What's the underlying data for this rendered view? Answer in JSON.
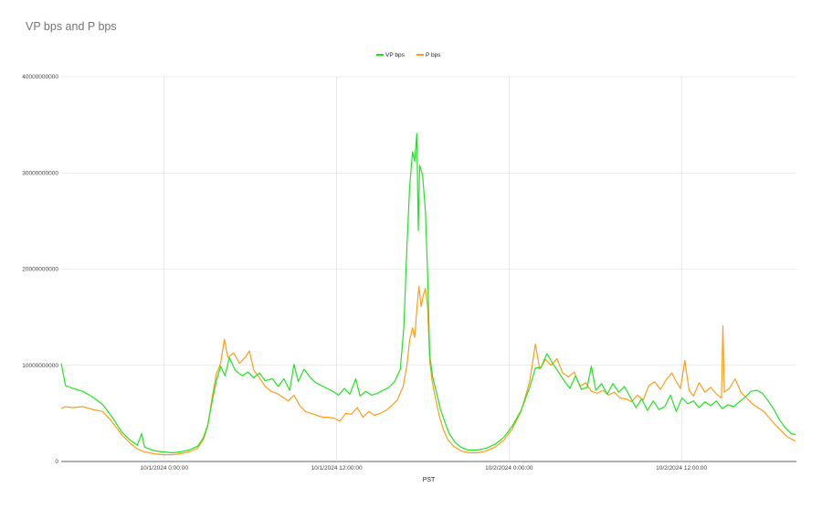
{
  "title": "VP bps and P bps",
  "chart_data": {
    "type": "line",
    "title": "VP bps and P bps",
    "xlabel": "PST",
    "ylabel": "",
    "x_range": [
      "9/30/2024 16:50:00",
      "10/2/2024 22:00:00"
    ],
    "x_tick_labels": [
      "10/1/2024 0:00:00",
      "10/1/2024 12:00:00",
      "10/2/2024 0:00:00",
      "10/2/2024 12:00:00"
    ],
    "x_ticks_hours": [
      7.1667,
      19.1667,
      31.1667,
      43.1667
    ],
    "ylim": [
      0,
      40000000000
    ],
    "y_ticks": [
      0,
      10000000000,
      20000000000,
      30000000000,
      40000000000
    ],
    "y_tick_labels": [
      "0",
      "10000000000",
      "20000000000",
      "30000000000",
      "40000000000"
    ],
    "grid": true,
    "legend": "top-center",
    "series": [
      {
        "name": "VP bps",
        "color": "#1ee61e",
        "points": [
          [
            0,
            10200000000
          ],
          [
            0.3,
            7900000000
          ],
          [
            0.8,
            7600000000
          ],
          [
            1.5,
            7300000000
          ],
          [
            2.2,
            6700000000
          ],
          [
            2.9,
            5900000000
          ],
          [
            3.5,
            4700000000
          ],
          [
            4.2,
            3100000000
          ],
          [
            4.8,
            2200000000
          ],
          [
            5.3,
            1700000000
          ],
          [
            5.6,
            2900000000
          ],
          [
            5.8,
            1500000000
          ],
          [
            6.5,
            1100000000
          ],
          [
            7.1,
            1000000000
          ],
          [
            7.7,
            900000000
          ],
          [
            8.3,
            1000000000
          ],
          [
            8.9,
            1200000000
          ],
          [
            9.5,
            1600000000
          ],
          [
            9.9,
            2500000000
          ],
          [
            10.2,
            3800000000
          ],
          [
            10.5,
            6200000000
          ],
          [
            10.8,
            8400000000
          ],
          [
            11.1,
            9900000000
          ],
          [
            11.4,
            8900000000
          ],
          [
            11.7,
            10800000000
          ],
          [
            12.1,
            9500000000
          ],
          [
            12.6,
            8900000000
          ],
          [
            13.0,
            9300000000
          ],
          [
            13.4,
            8700000000
          ],
          [
            13.8,
            9200000000
          ],
          [
            14.2,
            8400000000
          ],
          [
            14.7,
            8600000000
          ],
          [
            15.1,
            7800000000
          ],
          [
            15.5,
            8600000000
          ],
          [
            15.9,
            7400000000
          ],
          [
            16.2,
            10100000000
          ],
          [
            16.5,
            8300000000
          ],
          [
            16.9,
            9600000000
          ],
          [
            17.3,
            8800000000
          ],
          [
            17.7,
            8200000000
          ],
          [
            18.1,
            7900000000
          ],
          [
            18.5,
            7600000000
          ],
          [
            18.9,
            7300000000
          ],
          [
            19.3,
            6900000000
          ],
          [
            19.7,
            7600000000
          ],
          [
            20.1,
            7000000000
          ],
          [
            20.5,
            8600000000
          ],
          [
            20.8,
            6800000000
          ],
          [
            21.2,
            7300000000
          ],
          [
            21.6,
            6900000000
          ],
          [
            22.0,
            7100000000
          ],
          [
            22.4,
            7400000000
          ],
          [
            22.8,
            7700000000
          ],
          [
            23.2,
            8300000000
          ],
          [
            23.6,
            9600000000
          ],
          [
            23.85,
            14000000000
          ],
          [
            24.05,
            22000000000
          ],
          [
            24.25,
            28500000000
          ],
          [
            24.45,
            32200000000
          ],
          [
            24.6,
            31200000000
          ],
          [
            24.75,
            34100000000
          ],
          [
            24.85,
            24000000000
          ],
          [
            24.95,
            30800000000
          ],
          [
            25.15,
            29800000000
          ],
          [
            25.35,
            26000000000
          ],
          [
            25.5,
            19500000000
          ],
          [
            25.65,
            11000000000
          ],
          [
            25.85,
            8800000000
          ],
          [
            26.1,
            7300000000
          ],
          [
            26.4,
            5400000000
          ],
          [
            26.7,
            4100000000
          ],
          [
            27.0,
            2900000000
          ],
          [
            27.4,
            2000000000
          ],
          [
            27.8,
            1500000000
          ],
          [
            28.3,
            1200000000
          ],
          [
            29.0,
            1200000000
          ],
          [
            29.6,
            1400000000
          ],
          [
            30.2,
            1800000000
          ],
          [
            30.8,
            2500000000
          ],
          [
            31.4,
            3700000000
          ],
          [
            32.0,
            5300000000
          ],
          [
            32.6,
            7700000000
          ],
          [
            33.0,
            9700000000
          ],
          [
            33.4,
            9800000000
          ],
          [
            33.8,
            11200000000
          ],
          [
            34.2,
            10200000000
          ],
          [
            34.6,
            9300000000
          ],
          [
            35.0,
            8400000000
          ],
          [
            35.4,
            7600000000
          ],
          [
            35.8,
            8900000000
          ],
          [
            36.2,
            7500000000
          ],
          [
            36.6,
            7700000000
          ],
          [
            36.9,
            9900000000
          ],
          [
            37.2,
            7400000000
          ],
          [
            37.6,
            8100000000
          ],
          [
            38.0,
            7000000000
          ],
          [
            38.4,
            8100000000
          ],
          [
            38.8,
            7200000000
          ],
          [
            39.2,
            7800000000
          ],
          [
            39.6,
            6700000000
          ],
          [
            40.0,
            5600000000
          ],
          [
            40.4,
            6500000000
          ],
          [
            40.8,
            5300000000
          ],
          [
            41.2,
            6300000000
          ],
          [
            41.6,
            5400000000
          ],
          [
            42.0,
            5700000000
          ],
          [
            42.4,
            6900000000
          ],
          [
            42.8,
            5200000000
          ],
          [
            43.2,
            6600000000
          ],
          [
            43.6,
            6000000000
          ],
          [
            44.0,
            6300000000
          ],
          [
            44.4,
            5600000000
          ],
          [
            44.8,
            6200000000
          ],
          [
            45.2,
            5800000000
          ],
          [
            45.6,
            6300000000
          ],
          [
            46.0,
            5500000000
          ],
          [
            46.4,
            5900000000
          ],
          [
            46.8,
            5700000000
          ],
          [
            47.2,
            6200000000
          ],
          [
            47.6,
            6700000000
          ],
          [
            48.0,
            7300000000
          ],
          [
            48.4,
            7400000000
          ],
          [
            48.8,
            7100000000
          ],
          [
            49.2,
            6300000000
          ],
          [
            49.6,
            5400000000
          ],
          [
            50.0,
            4300000000
          ],
          [
            50.4,
            3500000000
          ],
          [
            50.8,
            2900000000
          ],
          [
            51.1,
            2800000000
          ]
        ]
      },
      {
        "name": "P bps",
        "color": "#ff9c1a",
        "points": [
          [
            0,
            5500000000
          ],
          [
            0.3,
            5700000000
          ],
          [
            0.8,
            5600000000
          ],
          [
            1.5,
            5700000000
          ],
          [
            2.2,
            5400000000
          ],
          [
            2.9,
            5200000000
          ],
          [
            3.5,
            4200000000
          ],
          [
            4.2,
            2800000000
          ],
          [
            4.8,
            1900000000
          ],
          [
            5.3,
            1300000000
          ],
          [
            5.8,
            1000000000
          ],
          [
            6.5,
            800000000
          ],
          [
            7.1,
            700000000
          ],
          [
            7.7,
            700000000
          ],
          [
            8.3,
            800000000
          ],
          [
            8.9,
            1000000000
          ],
          [
            9.5,
            1400000000
          ],
          [
            9.9,
            2300000000
          ],
          [
            10.2,
            3700000000
          ],
          [
            10.5,
            6600000000
          ],
          [
            10.8,
            9100000000
          ],
          [
            11.1,
            10200000000
          ],
          [
            11.35,
            12700000000
          ],
          [
            11.6,
            10800000000
          ],
          [
            12.0,
            11300000000
          ],
          [
            12.4,
            10200000000
          ],
          [
            12.8,
            10800000000
          ],
          [
            13.1,
            11500000000
          ],
          [
            13.4,
            9500000000
          ],
          [
            13.8,
            8700000000
          ],
          [
            14.2,
            7800000000
          ],
          [
            14.6,
            7300000000
          ],
          [
            15.0,
            7100000000
          ],
          [
            15.4,
            6700000000
          ],
          [
            15.8,
            6300000000
          ],
          [
            16.2,
            6900000000
          ],
          [
            16.6,
            5800000000
          ],
          [
            17.0,
            5200000000
          ],
          [
            17.4,
            5000000000
          ],
          [
            17.8,
            4800000000
          ],
          [
            18.2,
            4600000000
          ],
          [
            18.6,
            4600000000
          ],
          [
            19.0,
            4500000000
          ],
          [
            19.4,
            4200000000
          ],
          [
            19.8,
            5000000000
          ],
          [
            20.2,
            4900000000
          ],
          [
            20.6,
            5600000000
          ],
          [
            21.0,
            4600000000
          ],
          [
            21.4,
            5200000000
          ],
          [
            21.8,
            4800000000
          ],
          [
            22.2,
            5000000000
          ],
          [
            22.6,
            5300000000
          ],
          [
            23.0,
            5800000000
          ],
          [
            23.4,
            6400000000
          ],
          [
            23.8,
            7800000000
          ],
          [
            24.05,
            9900000000
          ],
          [
            24.25,
            12600000000
          ],
          [
            24.45,
            13900000000
          ],
          [
            24.6,
            12900000000
          ],
          [
            24.75,
            15800000000
          ],
          [
            24.9,
            18200000000
          ],
          [
            25.05,
            16100000000
          ],
          [
            25.2,
            17300000000
          ],
          [
            25.35,
            18000000000
          ],
          [
            25.5,
            16000000000
          ],
          [
            25.65,
            10500000000
          ],
          [
            25.8,
            8500000000
          ],
          [
            26.0,
            6900000000
          ],
          [
            26.3,
            4800000000
          ],
          [
            26.6,
            3300000000
          ],
          [
            26.9,
            2300000000
          ],
          [
            27.3,
            1600000000
          ],
          [
            27.8,
            1100000000
          ],
          [
            28.4,
            900000000
          ],
          [
            29.0,
            900000000
          ],
          [
            29.6,
            1100000000
          ],
          [
            30.2,
            1500000000
          ],
          [
            30.8,
            2200000000
          ],
          [
            31.4,
            3400000000
          ],
          [
            32.0,
            5200000000
          ],
          [
            32.6,
            8300000000
          ],
          [
            33.0,
            12200000000
          ],
          [
            33.3,
            9600000000
          ],
          [
            33.7,
            10600000000
          ],
          [
            34.1,
            10000000000
          ],
          [
            34.5,
            10700000000
          ],
          [
            34.9,
            9200000000
          ],
          [
            35.3,
            8800000000
          ],
          [
            35.7,
            9300000000
          ],
          [
            36.1,
            7800000000
          ],
          [
            36.5,
            8200000000
          ],
          [
            36.9,
            7300000000
          ],
          [
            37.3,
            7100000000
          ],
          [
            37.7,
            7400000000
          ],
          [
            38.1,
            6900000000
          ],
          [
            38.5,
            7200000000
          ],
          [
            38.9,
            6600000000
          ],
          [
            39.3,
            6500000000
          ],
          [
            39.7,
            6200000000
          ],
          [
            40.1,
            6900000000
          ],
          [
            40.5,
            6400000000
          ],
          [
            40.9,
            7900000000
          ],
          [
            41.3,
            8300000000
          ],
          [
            41.7,
            7500000000
          ],
          [
            42.1,
            8500000000
          ],
          [
            42.5,
            9200000000
          ],
          [
            42.8,
            8300000000
          ],
          [
            43.1,
            7600000000
          ],
          [
            43.4,
            10500000000
          ],
          [
            43.7,
            7400000000
          ],
          [
            44.0,
            6800000000
          ],
          [
            44.4,
            8200000000
          ],
          [
            44.8,
            7200000000
          ],
          [
            45.2,
            7700000000
          ],
          [
            45.6,
            7000000000
          ],
          [
            45.95,
            6600000000
          ],
          [
            46.05,
            14100000000
          ],
          [
            46.15,
            7200000000
          ],
          [
            46.5,
            7600000000
          ],
          [
            46.9,
            8600000000
          ],
          [
            47.3,
            7200000000
          ],
          [
            47.7,
            6600000000
          ],
          [
            48.1,
            6000000000
          ],
          [
            48.5,
            5600000000
          ],
          [
            48.9,
            5200000000
          ],
          [
            49.3,
            4500000000
          ],
          [
            49.7,
            3800000000
          ],
          [
            50.1,
            3200000000
          ],
          [
            50.5,
            2600000000
          ],
          [
            51.1,
            2100000000
          ]
        ]
      }
    ]
  }
}
